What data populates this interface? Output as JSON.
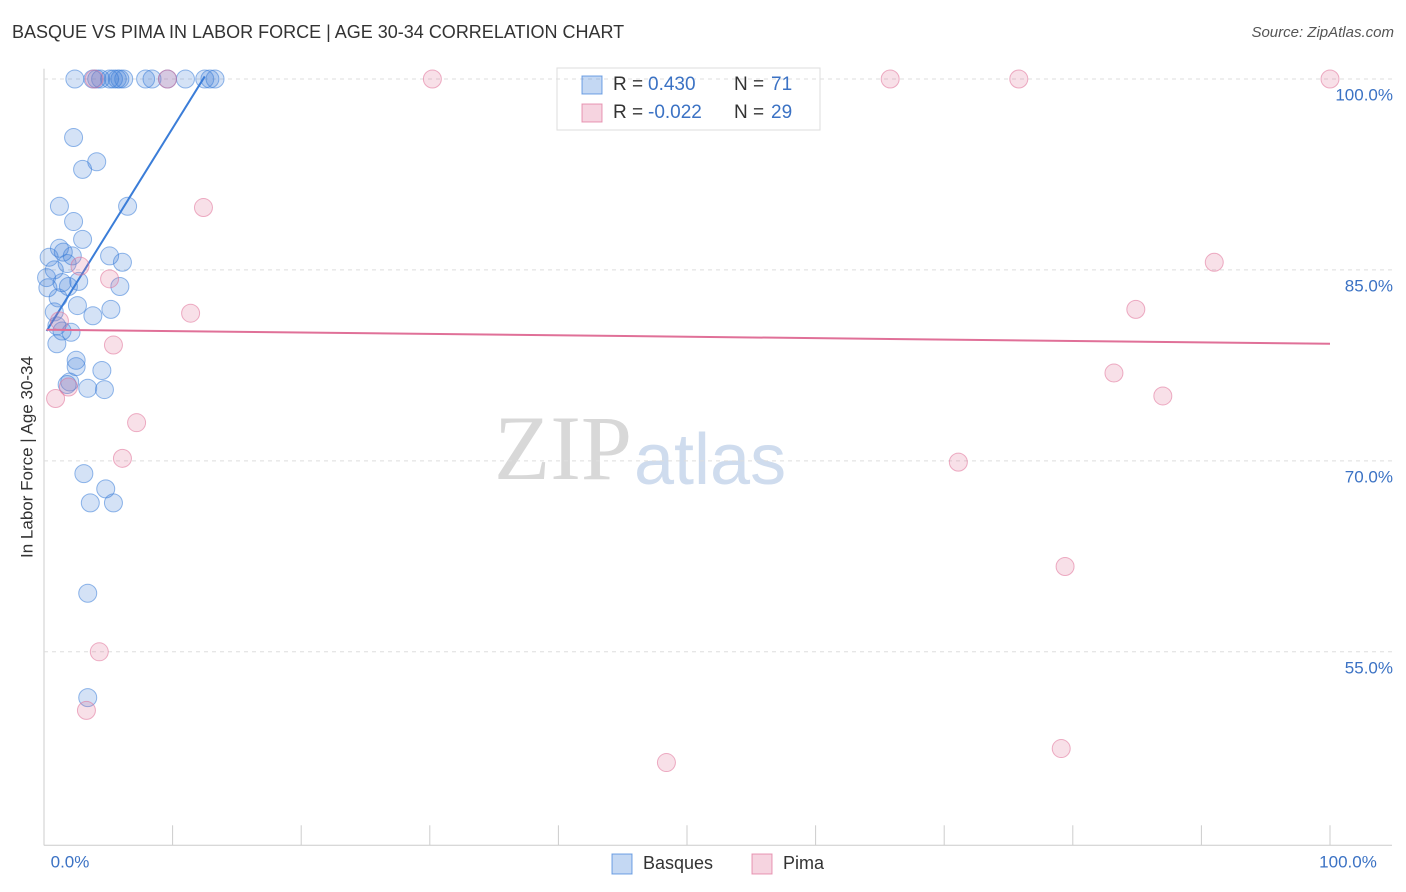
{
  "chart_data": {
    "type": "scatter",
    "title": "BASQUE VS PIMA IN LABOR FORCE | AGE 30-34 CORRELATION CHART",
    "source": "Source: ZipAtlas.com",
    "ylabel": "In Labor Force | Age 30-34",
    "watermark": [
      "ZIP",
      "atlas"
    ],
    "stat_labels": [
      "R = ",
      "N = "
    ],
    "xlim": [
      0,
      100
    ],
    "ylim": [
      39.8,
      100.8
    ],
    "xticks": [
      {
        "value": 0,
        "label": "0.0%"
      },
      {
        "value": 100,
        "label": "100.0%"
      }
    ],
    "xminor_ticks": [
      10,
      20,
      30,
      40,
      50,
      60,
      70,
      80,
      90
    ],
    "yticks": [
      {
        "value": 55,
        "label": "55.0%"
      },
      {
        "value": 70,
        "label": "70.0%"
      },
      {
        "value": 85,
        "label": "85.0%"
      },
      {
        "value": 100,
        "label": "100.0%"
      }
    ],
    "grid": true,
    "series": [
      {
        "name": "Basques",
        "color": "#3b7dd8",
        "r": {
          "value": 0.43,
          "label": "0.430"
        },
        "n": 71,
        "x": [
          2.4,
          4.4,
          3.8,
          4.1,
          5.1,
          5.4,
          5.7,
          5.9,
          6.2,
          7.9,
          8.4,
          9.6,
          11.0,
          12.5,
          12.9,
          13.3,
          2.3,
          4.1,
          3.0,
          6.5,
          1.2,
          2.3,
          3.0,
          1.2,
          1.5,
          2.2,
          0.4,
          5.1,
          6.1,
          1.8,
          0.8,
          0.2,
          1.4,
          2.7,
          0.3,
          1.9,
          5.9,
          1.1,
          2.6,
          0.8,
          5.2,
          3.8,
          1.0,
          1.4,
          2.1,
          1.0,
          2.5,
          2.5,
          4.5,
          1.8,
          2.0,
          3.4,
          4.7,
          3.1,
          4.8,
          3.6,
          5.4,
          3.4,
          3.4
        ],
        "values": [
          100,
          100,
          100,
          100,
          100,
          100,
          100,
          100,
          100,
          100,
          100,
          100,
          100,
          100,
          100,
          100,
          95.4,
          93.5,
          92.9,
          90.0,
          90.0,
          88.8,
          87.4,
          86.7,
          86.4,
          86.1,
          86.0,
          86.1,
          85.6,
          85.5,
          85.0,
          84.4,
          84.0,
          84.1,
          83.6,
          83.7,
          83.7,
          82.8,
          82.2,
          81.7,
          81.9,
          81.4,
          80.6,
          80.2,
          80.1,
          79.2,
          77.9,
          77.4,
          77.1,
          76.0,
          76.2,
          75.7,
          75.6,
          69.0,
          67.8,
          66.7,
          66.7,
          59.6,
          51.4
        ],
        "trend": {
          "x": [
            0.2,
            12.5
          ],
          "y": [
            80.2,
            100.2
          ]
        }
      },
      {
        "name": "Pima",
        "color": "#e07098",
        "r": {
          "value": -0.022,
          "label": "-0.022"
        },
        "n": 29,
        "x": [
          3.9,
          9.6,
          30.2,
          65.8,
          75.8,
          100,
          12.4,
          91.0,
          2.8,
          5.1,
          11.4,
          84.9,
          1.2,
          5.4,
          83.2,
          87.0,
          0.9,
          1.9,
          7.2,
          6.1,
          71.1,
          79.4,
          4.3,
          3.3,
          48.4,
          79.1
        ],
        "values": [
          100,
          100,
          100,
          100,
          100,
          100,
          89.9,
          85.6,
          85.3,
          84.3,
          81.6,
          81.9,
          81.0,
          79.1,
          76.9,
          75.1,
          74.9,
          75.8,
          73.0,
          70.2,
          69.9,
          61.7,
          55.0,
          50.4,
          46.3,
          47.4
        ],
        "trend": {
          "x": [
            0.2,
            100
          ],
          "y": [
            80.3,
            79.2
          ]
        }
      }
    ]
  }
}
